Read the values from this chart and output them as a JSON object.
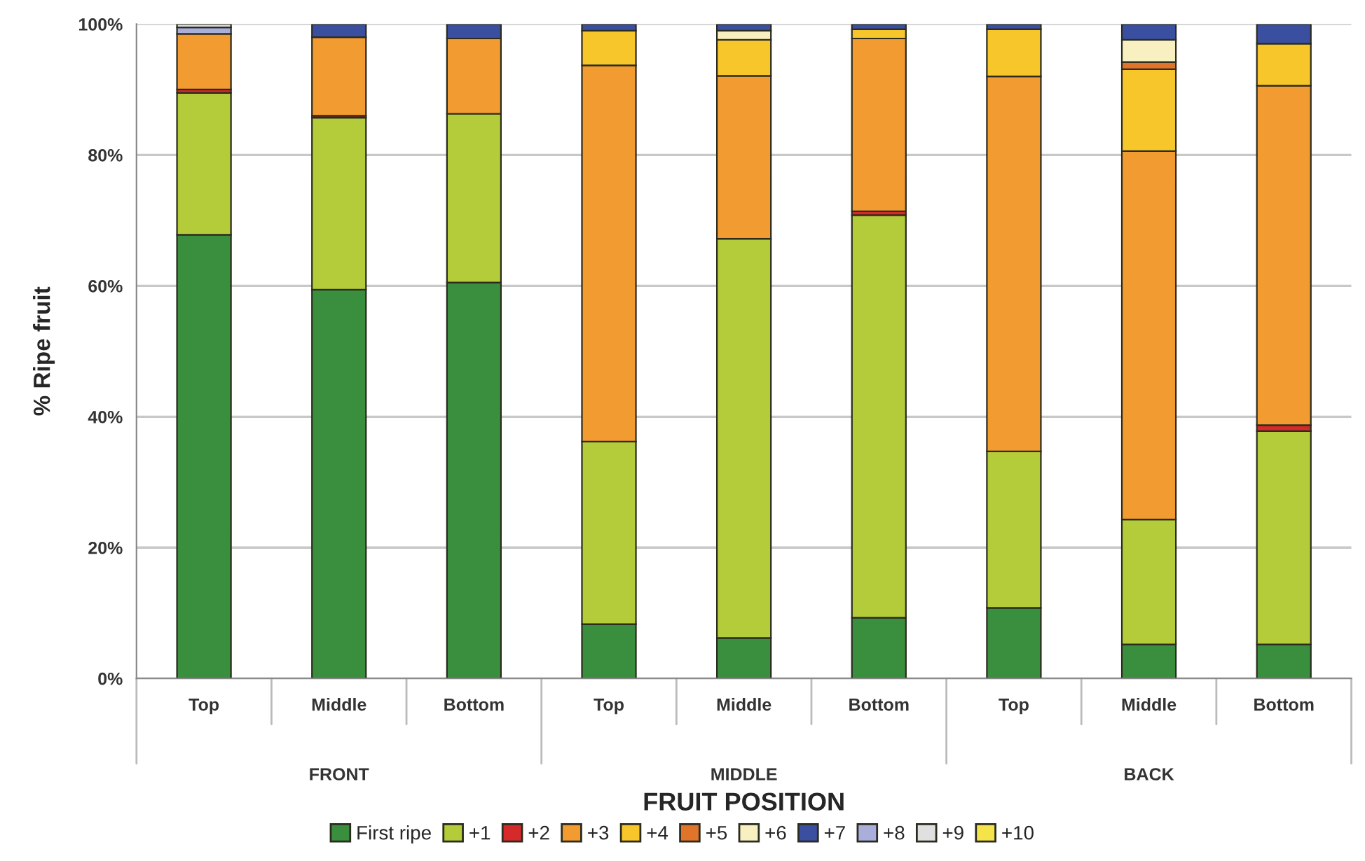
{
  "chart_data": {
    "type": "bar",
    "stacked": true,
    "xlabel": "FRUIT POSITION",
    "ylabel": "% Ripe fruit",
    "categories": [
      "Top",
      "Middle",
      "Bottom",
      "Top",
      "Middle",
      "Bottom",
      "Top",
      "Middle",
      "Bottom"
    ],
    "annotations": [
      "FRONT",
      "MIDDLE",
      "BACK"
    ],
    "series": [
      {
        "name": "First ripe",
        "color": "#3a8f3f",
        "values": [
          67.8,
          59.4,
          60.5,
          8.3,
          6.2,
          9.3,
          10.8,
          5.2,
          5.2
        ]
      },
      {
        "name": "+1",
        "color": "#b5cc3a",
        "values": [
          21.7,
          26.3,
          25.8,
          27.9,
          61.0,
          61.5,
          23.9,
          19.1,
          32.6
        ]
      },
      {
        "name": "+2",
        "color": "#d62a2a",
        "values": [
          0.5,
          0.3,
          null,
          null,
          null,
          0.6,
          null,
          null,
          0.9
        ]
      },
      {
        "name": "+3",
        "color": "#f29b30",
        "values": [
          8.5,
          12.0,
          11.5,
          57.5,
          24.9,
          26.4,
          57.3,
          56.3,
          51.9
        ]
      },
      {
        "name": "+4",
        "color": "#f7c62b",
        "values": [
          null,
          null,
          null,
          5.3,
          5.5,
          1.4,
          7.2,
          12.5,
          6.4
        ]
      },
      {
        "name": "+5",
        "color": "#e0742a",
        "values": [
          null,
          null,
          null,
          null,
          null,
          null,
          null,
          1.1,
          null
        ]
      },
      {
        "name": "+6",
        "color": "#f8f0c0",
        "values": [
          null,
          null,
          null,
          null,
          1.4,
          null,
          null,
          3.4,
          null
        ]
      },
      {
        "name": "+7",
        "color": "#3a4f9f",
        "values": [
          null,
          2.0,
          2.2,
          1.0,
          1.0,
          0.8,
          0.8,
          2.4,
          3.0
        ]
      },
      {
        "name": "+8",
        "color": "#a9aedb",
        "values": [
          1.0,
          null,
          null,
          null,
          null,
          null,
          null,
          null,
          null
        ]
      },
      {
        "name": "+9",
        "color": "#e0e0e0",
        "values": [
          0.5,
          null,
          null,
          null,
          null,
          null,
          null,
          null,
          null
        ]
      },
      {
        "name": "+10",
        "color": "#f4e44a",
        "values": [
          null,
          null,
          null,
          null,
          null,
          null,
          null,
          null,
          null
        ]
      }
    ],
    "ylim": [
      0,
      100
    ],
    "yticks": [
      {
        "value": 0,
        "label": "0%"
      },
      {
        "value": 20,
        "label": "20%"
      },
      {
        "value": 40,
        "label": "40%"
      },
      {
        "value": 60,
        "label": "60%"
      },
      {
        "value": 80,
        "label": "80%"
      },
      {
        "value": 100,
        "label": "100%"
      }
    ],
    "grid": "y",
    "legend": "bottom"
  }
}
